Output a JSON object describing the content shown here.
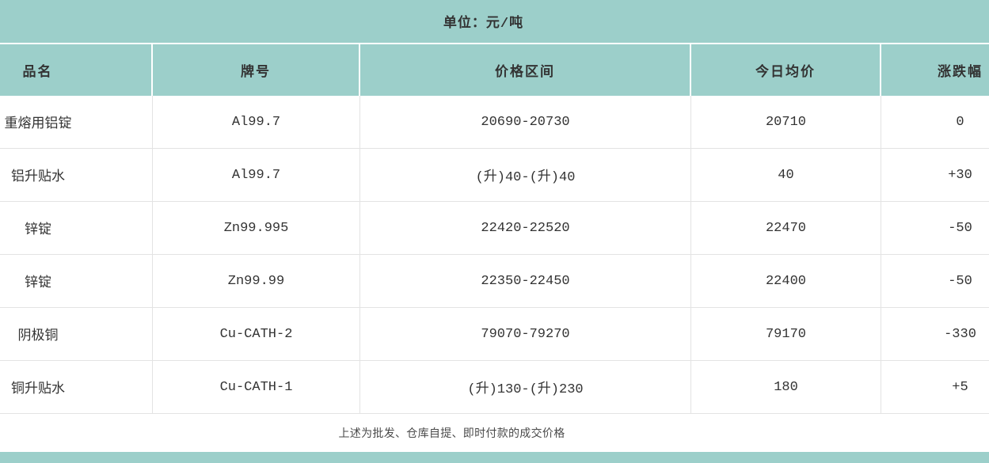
{
  "unit_label": "单位：元/吨",
  "table": {
    "columns": [
      {
        "key": "name",
        "label": "品名"
      },
      {
        "key": "brand",
        "label": "牌号"
      },
      {
        "key": "range",
        "label": "价格区间"
      },
      {
        "key": "avg",
        "label": "今日均价"
      },
      {
        "key": "change",
        "label": "涨跌幅"
      }
    ],
    "rows": [
      {
        "name": "重熔用铝锭",
        "brand": "Al99.7",
        "range": "20690-20730",
        "avg": "20710",
        "change": "0"
      },
      {
        "name": "铝升贴水",
        "brand": "Al99.7",
        "range": "(升)40-(升)40",
        "avg": "40",
        "change": "+30"
      },
      {
        "name": "锌锭",
        "brand": "Zn99.995",
        "range": "22420-22520",
        "avg": "22470",
        "change": "-50"
      },
      {
        "name": "锌锭",
        "brand": "Zn99.99",
        "range": "22350-22450",
        "avg": "22400",
        "change": "-50"
      },
      {
        "name": "阴极铜",
        "brand": "Cu-CATH-2",
        "range": "79070-79270",
        "avg": "79170",
        "change": "-330"
      },
      {
        "name": "铜升贴水",
        "brand": "Cu-CATH-1",
        "range": "(升)130-(升)230",
        "avg": "180",
        "change": "+5"
      }
    ]
  },
  "footer_note": "上述为批发、仓库自提、即时付款的成交价格",
  "colors": {
    "teal_header": "#9ccfca",
    "row_line": "#e3e3e3",
    "text": "#333333",
    "footer_text": "#4a4a4a"
  }
}
